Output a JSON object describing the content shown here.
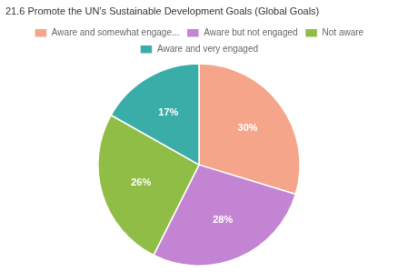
{
  "chart_data": {
    "type": "pie",
    "title": "21.6 Promote the UN’s Sustainable Development Goals (Global Goals)",
    "categories": [
      "Aware and somewhat engage...",
      "Aware but not engaged",
      "Not aware",
      "Aware and very engaged"
    ],
    "values": [
      30,
      28,
      26,
      17
    ],
    "value_labels": [
      "30%",
      "28%",
      "26%",
      "17%"
    ],
    "colors": [
      "#F4A58A",
      "#C484D4",
      "#8FBD45",
      "#3AADA8"
    ],
    "data_labels": true,
    "legend": "top"
  }
}
